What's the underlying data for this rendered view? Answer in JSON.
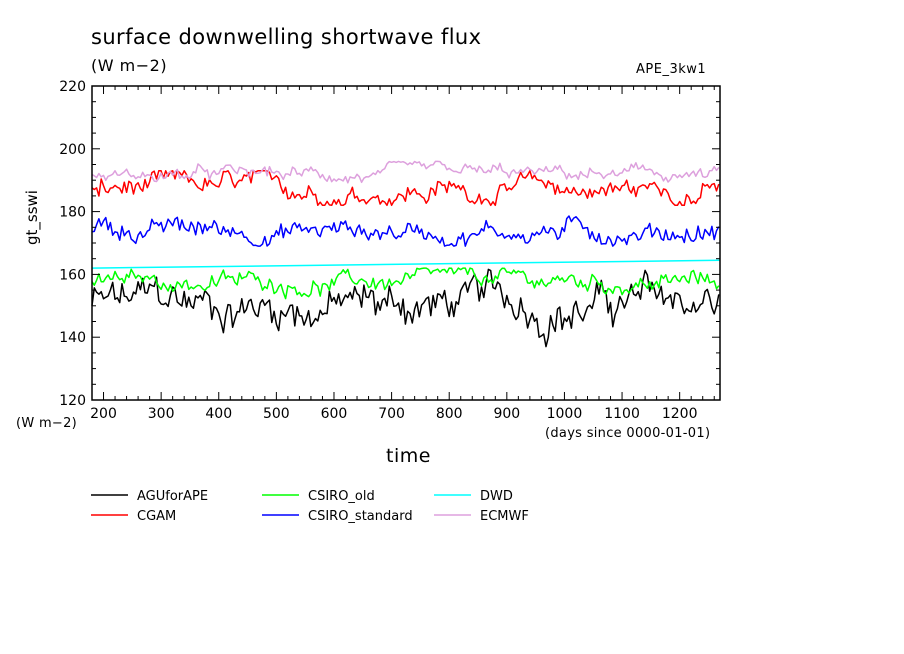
{
  "chart_data": {
    "type": "line",
    "title": "surface downwelling shortwave flux",
    "subtitle": "(W m−2)",
    "annotation": "APE_3kw1",
    "ylabel": "gt_sswi",
    "yunits": "(W m−2)",
    "xlabel": "time",
    "xunits": "(days since 0000-01-01)",
    "xlim": [
      180,
      1270
    ],
    "ylim": [
      120,
      220
    ],
    "xticks": [
      200,
      300,
      400,
      500,
      600,
      700,
      800,
      900,
      1000,
      1100,
      1200
    ],
    "yticks": [
      120,
      140,
      160,
      180,
      200,
      220
    ],
    "grid": false,
    "legend_position": "bottom",
    "x_step": 4,
    "series": [
      {
        "name": "AGUforAPE",
        "color": "#000000",
        "base": 150.5,
        "amp": 4.5,
        "min": 137,
        "max": 162
      },
      {
        "name": "CGAM",
        "color": "#ff0000",
        "base": 187,
        "amp": 2.6,
        "min": 182,
        "max": 193
      },
      {
        "name": "CSIRO_old",
        "color": "#00ff00",
        "base": 157.5,
        "amp": 2.0,
        "min": 151,
        "max": 162
      },
      {
        "name": "CSIRO_standard",
        "color": "#0000ff",
        "base": 174,
        "amp": 2.3,
        "min": 169,
        "max": 181
      },
      {
        "name": "DWD",
        "color": "#00ffff",
        "start": 162,
        "end": 164.5
      },
      {
        "name": "ECMWF",
        "color": "#dda0dd",
        "base": 191.5,
        "amp": 1.5,
        "min": 186,
        "max": 196
      }
    ]
  }
}
